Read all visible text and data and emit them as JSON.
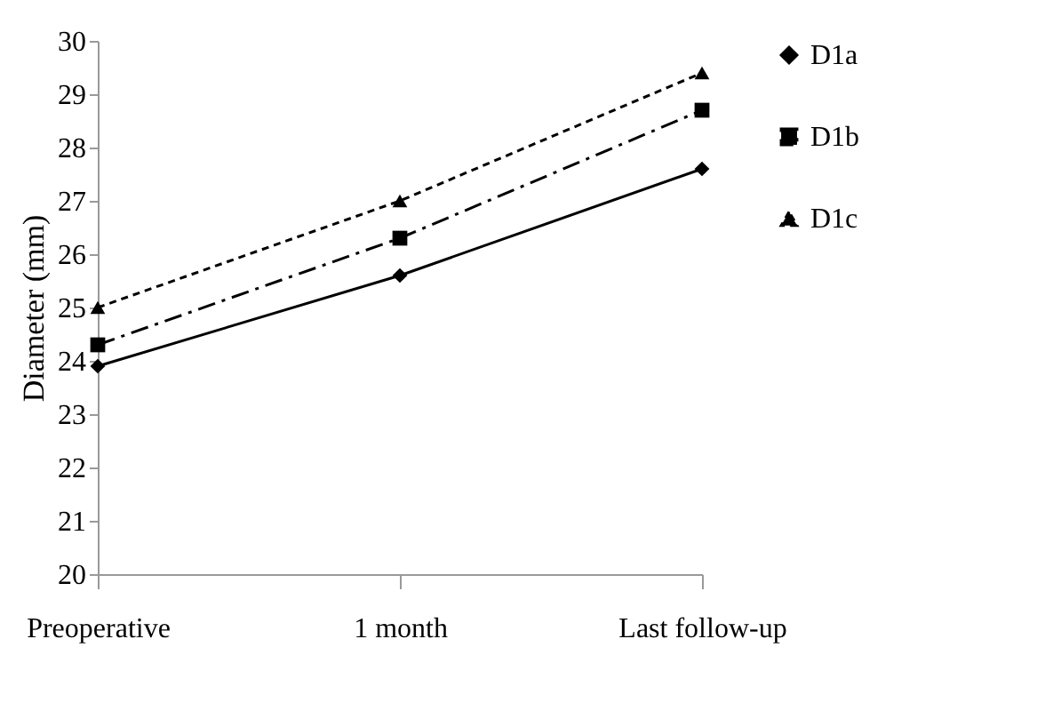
{
  "chart_data": {
    "type": "line",
    "ylabel": "Diameter (mm)",
    "categories": [
      "Preoperative",
      "1 month",
      "Last follow-up"
    ],
    "ylim": [
      20,
      30
    ],
    "yticks": [
      20,
      21,
      22,
      23,
      24,
      25,
      26,
      27,
      28,
      29,
      30
    ],
    "grid": false,
    "legend": "right",
    "series": [
      {
        "name": "D1a",
        "color": "#000000",
        "values": [
          23.9,
          25.6,
          27.6
        ],
        "marker": "diamond",
        "line_style": "solid"
      },
      {
        "name": "D1b",
        "color": "#000000",
        "values": [
          24.3,
          26.3,
          28.7
        ],
        "marker": "square",
        "line_style": "dashdot"
      },
      {
        "name": "D1c",
        "color": "#000000",
        "values": [
          25.0,
          27.0,
          29.4
        ],
        "marker": "triangle",
        "line_style": "dashed"
      }
    ]
  }
}
